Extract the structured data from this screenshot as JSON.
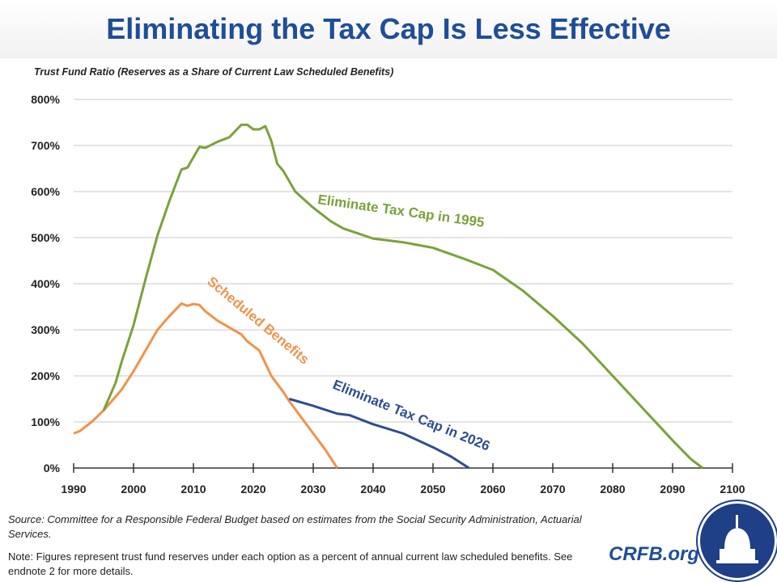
{
  "header": {
    "title": "Eliminating the Tax Cap Is Less Effective"
  },
  "chart_data": {
    "type": "line",
    "title": "Eliminating the Tax Cap Is Less Effective",
    "ylabel": "Trust Fund Ratio (Reserves as a Share of Current Law Scheduled Benefits)",
    "xlabel": "",
    "xlim": [
      1990,
      2100
    ],
    "ylim": [
      0,
      800
    ],
    "x_ticks": [
      "1990",
      "2000",
      "2010",
      "2020",
      "2030",
      "2040",
      "2050",
      "2060",
      "2070",
      "2080",
      "2090",
      "2100"
    ],
    "y_ticks": [
      "0%",
      "100%",
      "200%",
      "300%",
      "400%",
      "500%",
      "600%",
      "700%",
      "800%"
    ],
    "grid": "horizontal",
    "series": [
      {
        "name": "Scheduled Benefits",
        "color": "#F0934A",
        "points": [
          [
            1990,
            75
          ],
          [
            1991,
            80
          ],
          [
            1993,
            100
          ],
          [
            1995,
            125
          ],
          [
            1998,
            170
          ],
          [
            2000,
            210
          ],
          [
            2002,
            255
          ],
          [
            2004,
            300
          ],
          [
            2006,
            330
          ],
          [
            2008,
            357
          ],
          [
            2009,
            352
          ],
          [
            2010,
            356
          ],
          [
            2011,
            354
          ],
          [
            2012,
            340
          ],
          [
            2014,
            320
          ],
          [
            2016,
            305
          ],
          [
            2018,
            290
          ],
          [
            2019,
            275
          ],
          [
            2021,
            255
          ],
          [
            2023,
            200
          ],
          [
            2025,
            165
          ],
          [
            2026,
            145
          ],
          [
            2028,
            110
          ],
          [
            2030,
            75
          ],
          [
            2032,
            40
          ],
          [
            2034,
            0
          ]
        ]
      },
      {
        "name": "Eliminate Tax Cap in 1995",
        "color": "#7AA23A",
        "points": [
          [
            1995,
            125
          ],
          [
            1997,
            185
          ],
          [
            1998,
            230
          ],
          [
            2000,
            310
          ],
          [
            2002,
            410
          ],
          [
            2004,
            505
          ],
          [
            2006,
            580
          ],
          [
            2008,
            648
          ],
          [
            2009,
            652
          ],
          [
            2011,
            697
          ],
          [
            2012,
            695
          ],
          [
            2014,
            708
          ],
          [
            2016,
            718
          ],
          [
            2018,
            745
          ],
          [
            2019,
            745
          ],
          [
            2020,
            735
          ],
          [
            2021,
            735
          ],
          [
            2022,
            742
          ],
          [
            2023,
            710
          ],
          [
            2024,
            660
          ],
          [
            2025,
            645
          ],
          [
            2027,
            600
          ],
          [
            2030,
            565
          ],
          [
            2033,
            535
          ],
          [
            2035,
            520
          ],
          [
            2040,
            498
          ],
          [
            2045,
            490
          ],
          [
            2050,
            478
          ],
          [
            2055,
            455
          ],
          [
            2060,
            430
          ],
          [
            2065,
            385
          ],
          [
            2070,
            330
          ],
          [
            2075,
            270
          ],
          [
            2080,
            200
          ],
          [
            2085,
            130
          ],
          [
            2090,
            60
          ],
          [
            2093,
            20
          ],
          [
            2095,
            0
          ]
        ]
      },
      {
        "name": "Eliminate Tax Cap in 2026",
        "color": "#2E4D8F",
        "points": [
          [
            2026,
            150
          ],
          [
            2030,
            135
          ],
          [
            2034,
            118
          ],
          [
            2036,
            115
          ],
          [
            2040,
            95
          ],
          [
            2045,
            75
          ],
          [
            2050,
            45
          ],
          [
            2053,
            25
          ],
          [
            2056,
            0
          ]
        ]
      }
    ]
  },
  "footer": {
    "source": "Source: Committee for a Responsible Federal Budget based on estimates from the Social Security Administration, Actuarial Services.",
    "note": "Note: Figures represent trust fund reserves under each option as a percent of annual current law scheduled benefits. See endnote 2 for more details.",
    "brand": "CRFB.org"
  }
}
